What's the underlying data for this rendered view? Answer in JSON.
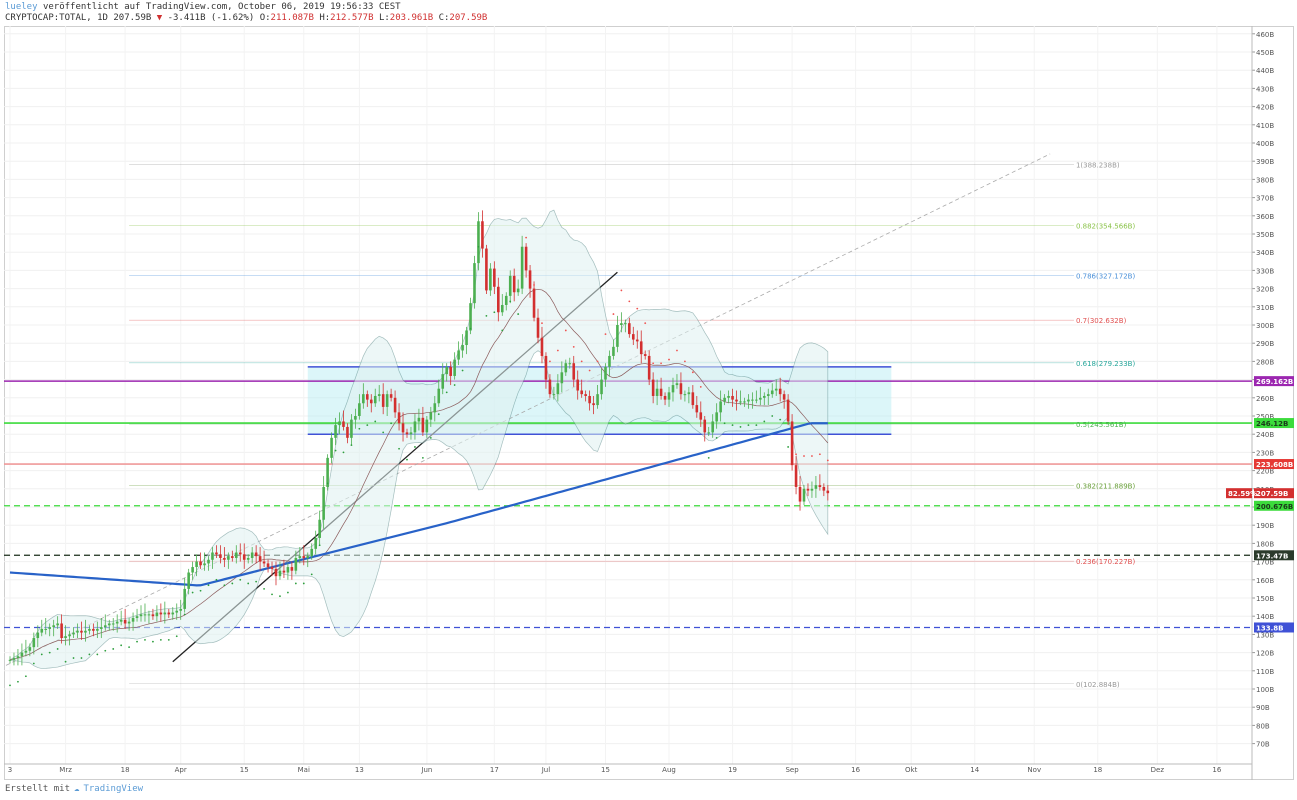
{
  "header": {
    "author": "lueley",
    "published_text": "veröffentlicht auf TradingView.com, October 06, 2019 19:56:33 CEST",
    "symbol": "CRYPTOCAP:TOTAL, 1D",
    "last": "207.59B",
    "change_arrow": "▼",
    "change": "-3.411B (-1.62%)",
    "o_label": "O:",
    "o": "211.087B",
    "h_label": "H:",
    "h": "212.577B",
    "l_label": "L:",
    "l": "203.961B",
    "c_label": "C:",
    "c": "207.59B"
  },
  "footer": {
    "text": "Erstellt mit",
    "brand": "TradingView"
  },
  "colors": {
    "up": "#4caf50",
    "down": "#d32f2f",
    "ma200": "#2862c8",
    "cloud": "#a9e9e9",
    "purple": "#9c27b0",
    "green": "#3cdb3c",
    "red": "#ef5350",
    "blue": "#3f51d6",
    "sar_up": "#2e9e3e"
  },
  "chart_data": {
    "type": "candlestick",
    "y_scale": "linear (billions USD)",
    "ylim": [
      60,
      470
    ],
    "y_ticks": [
      "460B",
      "450B",
      "440B",
      "430B",
      "420B",
      "410B",
      "400B",
      "390B",
      "380B",
      "370B",
      "360B",
      "350B",
      "340B",
      "330B",
      "320B",
      "310B",
      "300B",
      "290B",
      "280B",
      "270B",
      "260B",
      "250B",
      "240B",
      "230B",
      "220B",
      "210B",
      "200B",
      "190B",
      "180B",
      "170B",
      "160B",
      "150B",
      "140B",
      "130B",
      "120B",
      "110B",
      "100B",
      "90B",
      "80B",
      "70B"
    ],
    "x_ticks": [
      "3",
      "Mrz",
      "18",
      "Apr",
      "15",
      "Mai",
      "13",
      "Jun",
      "17",
      "Jul",
      "15",
      "Aug",
      "19",
      "Sep",
      "16",
      "Okt",
      "14",
      "Nov",
      "18",
      "Dez",
      "16"
    ],
    "fib_levels": [
      {
        "ratio": "1",
        "value": 388.238,
        "label": "1(388.238B)",
        "color": "#999999"
      },
      {
        "ratio": "0.882",
        "value": 354.566,
        "label": "0.882(354.566B)",
        "color": "#8bc34a"
      },
      {
        "ratio": "0.786",
        "value": 327.172,
        "label": "0.786(327.172B)",
        "color": "#4a90d9"
      },
      {
        "ratio": "0.7",
        "value": 302.632,
        "label": "0.7(302.632B)",
        "color": "#e05050"
      },
      {
        "ratio": "0.618",
        "value": 279.233,
        "label": "0.618(279.233B)",
        "color": "#26a69a"
      },
      {
        "ratio": "0.5",
        "value": 245.561,
        "label": "0.5(245.561B)",
        "color": "#4caf50"
      },
      {
        "ratio": "0.382",
        "value": 211.889,
        "label": "0.382(211.889B)",
        "color": "#689f38"
      },
      {
        "ratio": "0.236",
        "value": 170.227,
        "label": "0.236(170.227B)",
        "color": "#e05050"
      },
      {
        "ratio": "0",
        "value": 102.884,
        "label": "0(102.884B)",
        "color": "#999999"
      }
    ],
    "price_labels": [
      {
        "value": 269.162,
        "text": "269.162B",
        "bg": "#9c27b0",
        "fg": "#ffffff"
      },
      {
        "value": 246.12,
        "text": "246.12B",
        "bg": "#3cdb3c",
        "fg": "#1a3a1a"
      },
      {
        "value": 223.608,
        "text": "223.608B",
        "bg": "#e53935",
        "fg": "#ffffff"
      },
      {
        "value": 207.59,
        "text": "207.59B",
        "bg": "#d32f2f",
        "fg": "#ffffff",
        "prefix": "82.59%"
      },
      {
        "value": 200.676,
        "text": "200.676B",
        "bg": "#3cdb3c",
        "fg": "#1a3a1a"
      },
      {
        "value": 173.47,
        "text": "173.47B",
        "bg": "#2b3a2b",
        "fg": "#ffffff"
      },
      {
        "value": 133.8,
        "text": "133.8B",
        "bg": "#3f51d6",
        "fg": "#ffffff"
      }
    ],
    "horizontal_lines": [
      {
        "value": 269.162,
        "color": "#9c27b0",
        "style": "solid"
      },
      {
        "value": 246.12,
        "color": "#3cdb3c",
        "style": "solid"
      },
      {
        "value": 223.608,
        "color": "#ef9a9a",
        "style": "solid"
      },
      {
        "value": 200.676,
        "color": "#3cdb3c",
        "style": "dashed"
      },
      {
        "value": 173.47,
        "color": "#1b2e1b",
        "style": "dashed"
      },
      {
        "value": 133.8,
        "color": "#3f51d6",
        "style": "dashed"
      }
    ],
    "range_box": {
      "x_from": "May 14",
      "x_to": "Oct 08",
      "y_top": 277,
      "y_bottom": 240
    },
    "candles": {
      "interval": "1D",
      "start": "Feb 28",
      "closes": [
        116,
        117,
        118,
        120,
        121,
        123,
        128,
        131,
        133,
        133,
        134,
        135,
        136,
        128,
        129,
        130,
        131,
        132,
        131,
        132,
        133,
        132,
        133,
        134,
        135,
        136,
        136,
        137,
        138,
        136,
        137,
        139,
        140,
        141,
        141,
        141,
        140,
        142,
        141,
        142,
        141,
        142,
        143,
        144,
        155,
        164,
        167,
        170,
        168,
        169,
        171,
        175,
        174,
        172,
        171,
        173,
        172,
        175,
        174,
        171,
        172,
        175,
        173,
        170,
        169,
        167,
        166,
        162,
        165,
        164,
        167,
        165,
        172,
        173,
        172,
        173,
        177,
        183,
        193,
        211,
        227,
        238,
        245,
        247,
        244,
        238,
        248,
        250,
        257,
        262,
        259,
        257,
        261,
        262,
        255,
        262,
        260,
        252,
        246,
        241,
        240,
        241,
        247,
        249,
        241,
        248,
        252,
        257,
        265,
        273,
        277,
        272,
        281,
        286,
        289,
        297,
        312,
        334,
        357,
        342,
        319,
        331,
        321,
        307,
        311,
        316,
        327,
        318,
        320,
        343,
        330,
        320,
        304,
        293,
        283,
        270,
        262,
        262,
        268,
        274,
        279,
        279,
        270,
        264,
        262,
        261,
        257,
        256,
        262,
        270,
        277,
        283,
        288,
        300,
        301,
        301,
        295,
        292,
        291,
        284,
        283,
        270,
        261,
        265,
        261,
        259,
        263,
        267,
        268,
        262,
        262,
        263,
        256,
        252,
        248,
        241,
        241,
        247,
        252,
        258,
        260,
        261,
        259,
        258,
        258,
        258,
        259,
        259,
        259,
        260,
        261,
        262,
        264,
        265,
        262,
        259,
        247,
        223,
        211,
        203,
        210,
        209,
        210,
        212,
        211,
        209,
        207.59
      ]
    },
    "ma200": {
      "start_value": 164,
      "description": "200-day moving average, rising to 246 near Oct"
    },
    "trendlines": [
      {
        "from": {
          "date": "Apr 10",
          "value": 115
        },
        "to": {
          "date": "Jul 31",
          "value": 329
        },
        "color": "#222222"
      },
      {
        "from": {
          "date": "Feb 28",
          "value": 113
        },
        "to": {
          "date": "Nov 17",
          "value": 394
        },
        "color": "#aaaaaa",
        "style": "dashed"
      }
    ]
  }
}
